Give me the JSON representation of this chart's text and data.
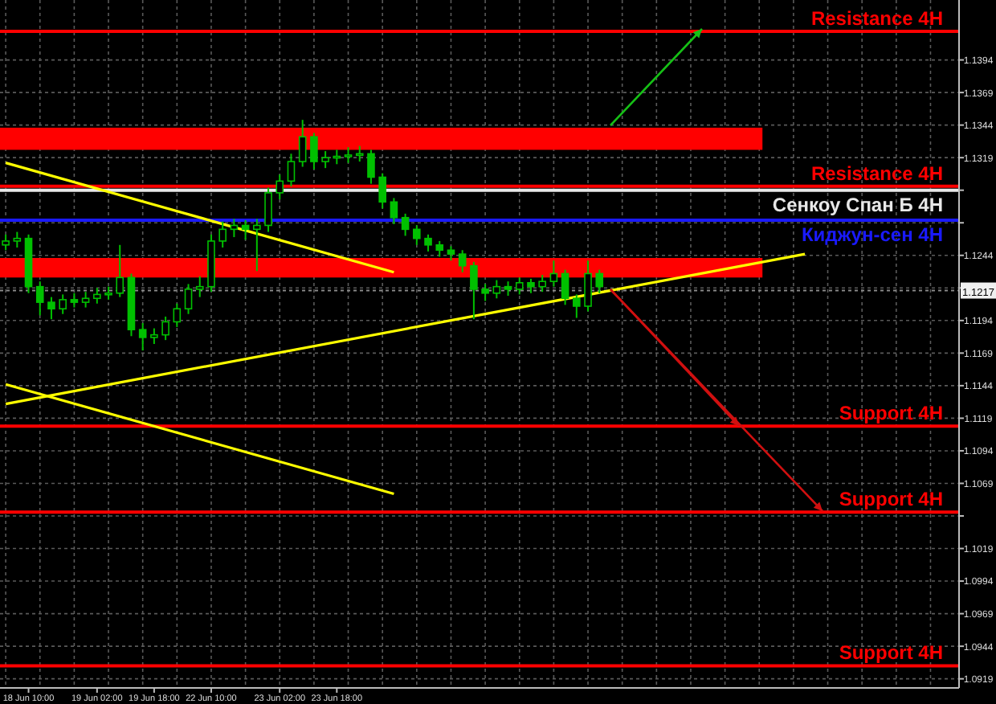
{
  "chart_data": {
    "type": "candlestick",
    "categories": [
      null,
      null,
      "18 Jun 10:00",
      null,
      null,
      null,
      null,
      null,
      "19 Jun 02:00",
      null,
      null,
      null,
      null,
      "19 Jun 18:00",
      null,
      null,
      null,
      null,
      "22 Jun 10:00",
      null,
      null,
      null,
      null,
      null,
      "23 Jun 02:00",
      null,
      null,
      null,
      null,
      "23 Jun 18:00",
      null,
      null,
      null,
      null,
      null,
      null,
      null,
      null,
      null,
      null,
      null,
      null,
      null,
      null,
      null,
      null,
      null,
      null,
      null,
      null,
      null,
      null,
      null,
      null,
      null,
      null,
      null,
      null,
      null,
      null,
      null,
      null,
      null,
      null,
      null,
      null,
      null,
      null,
      null,
      null,
      null,
      null,
      null,
      null,
      null,
      null,
      null,
      null,
      null,
      null,
      null,
      null,
      null,
      null
    ],
    "ohlc": [
      [
        1.1252,
        1.126,
        1.1248,
        1.1255
      ],
      [
        1.1255,
        1.1262,
        1.125,
        1.1257
      ],
      [
        1.1257,
        1.126,
        1.1215,
        1.122
      ],
      [
        1.122,
        1.1224,
        1.1198,
        1.1208
      ],
      [
        1.1208,
        1.1212,
        1.1195,
        1.1203
      ],
      [
        1.1203,
        1.1214,
        1.1199,
        1.121
      ],
      [
        1.121,
        1.1215,
        1.1204,
        1.1208
      ],
      [
        1.1208,
        1.1216,
        1.1204,
        1.1211
      ],
      [
        1.1211,
        1.1219,
        1.1207,
        1.1214
      ],
      [
        1.1214,
        1.122,
        1.121,
        1.1215
      ],
      [
        1.1215,
        1.1252,
        1.1212,
        1.1227
      ],
      [
        1.1227,
        1.123,
        1.1182,
        1.1187
      ],
      [
        1.1187,
        1.1192,
        1.1171,
        1.1181
      ],
      [
        1.1181,
        1.1188,
        1.1176,
        1.1183
      ],
      [
        1.1183,
        1.1197,
        1.1179,
        1.1193
      ],
      [
        1.1193,
        1.1207,
        1.1189,
        1.1203
      ],
      [
        1.1203,
        1.1222,
        1.1199,
        1.1218
      ],
      [
        1.1218,
        1.1228,
        1.1212,
        1.122
      ],
      [
        1.122,
        1.126,
        1.1216,
        1.1255
      ],
      [
        1.1255,
        1.127,
        1.125,
        1.1264
      ],
      [
        1.1264,
        1.1272,
        1.1258,
        1.1267
      ],
      [
        1.1267,
        1.1271,
        1.1256,
        1.1264
      ],
      [
        1.1264,
        1.1272,
        1.1232,
        1.1267
      ],
      [
        1.1267,
        1.1296,
        1.1262,
        1.1292
      ],
      [
        1.1292,
        1.1306,
        1.1287,
        1.1301
      ],
      [
        1.1301,
        1.1322,
        1.1297,
        1.1316
      ],
      [
        1.1316,
        1.1348,
        1.1312,
        1.1335
      ],
      [
        1.1335,
        1.1338,
        1.131,
        1.1316
      ],
      [
        1.1316,
        1.1324,
        1.1311,
        1.1319
      ],
      [
        1.1319,
        1.1325,
        1.1314,
        1.132
      ],
      [
        1.132,
        1.1327,
        1.1315,
        1.1321
      ],
      [
        1.1321,
        1.1328,
        1.1316,
        1.1322
      ],
      [
        1.1322,
        1.1325,
        1.1299,
        1.1304
      ],
      [
        1.1304,
        1.1307,
        1.128,
        1.1285
      ],
      [
        1.1285,
        1.1288,
        1.1268,
        1.1273
      ],
      [
        1.1273,
        1.1276,
        1.1259,
        1.1264
      ],
      [
        1.1264,
        1.1267,
        1.1252,
        1.1257
      ],
      [
        1.1257,
        1.126,
        1.1247,
        1.1252
      ],
      [
        1.1252,
        1.1255,
        1.1243,
        1.1248
      ],
      [
        1.1248,
        1.1251,
        1.124,
        1.1245
      ],
      [
        1.1245,
        1.1248,
        1.1231,
        1.1236
      ],
      [
        1.1236,
        1.1239,
        1.1195,
        1.1218
      ],
      [
        1.1218,
        1.1222,
        1.1209,
        1.1215
      ],
      [
        1.1215,
        1.1225,
        1.1211,
        1.122
      ],
      [
        1.122,
        1.1224,
        1.1213,
        1.1218
      ],
      [
        1.1218,
        1.1227,
        1.1214,
        1.1223
      ],
      [
        1.1223,
        1.1226,
        1.1215,
        1.122
      ],
      [
        1.122,
        1.1229,
        1.1216,
        1.1224
      ],
      [
        1.1224,
        1.124,
        1.122,
        1.123
      ],
      [
        1.123,
        1.1233,
        1.1206,
        1.1211
      ],
      [
        1.1211,
        1.1214,
        1.1196,
        1.1205
      ],
      [
        1.1205,
        1.124,
        1.1201,
        1.123
      ],
      [
        1.123,
        1.1233,
        1.1215,
        1.122
      ],
      null,
      null,
      null,
      null,
      null,
      null,
      null,
      null,
      null,
      null,
      null,
      null,
      null,
      null,
      null,
      null,
      null,
      null,
      null,
      null,
      null,
      null,
      null,
      null,
      null,
      null,
      null,
      null,
      null,
      null,
      null
    ],
    "color": "#00c000",
    "series": [
      {
        "type": "line",
        "color": "#ffff00",
        "values": [
          1.1315,
          null,
          null,
          null,
          null,
          null,
          null,
          null,
          null,
          null,
          null,
          null,
          null,
          null,
          null,
          null,
          null,
          null,
          null,
          null,
          null,
          null,
          null,
          null,
          null,
          null,
          null,
          null,
          null,
          null,
          null,
          null,
          null,
          null,
          1.1231,
          null,
          null,
          null,
          null,
          null,
          null,
          null,
          null,
          null,
          null,
          null,
          null,
          null,
          null,
          null,
          null,
          null,
          null,
          null,
          null,
          null,
          null,
          null,
          null,
          null,
          null,
          null,
          null,
          null,
          null,
          null,
          null,
          null,
          null,
          null,
          null,
          null,
          null,
          null,
          null,
          null,
          null,
          null,
          null,
          null,
          null,
          null,
          null,
          null
        ]
      },
      {
        "type": "line",
        "color": "#ffff00",
        "values": [
          1.113,
          null,
          null,
          null,
          null,
          null,
          null,
          null,
          null,
          null,
          null,
          null,
          null,
          null,
          null,
          null,
          null,
          null,
          null,
          null,
          null,
          null,
          null,
          null,
          null,
          null,
          null,
          null,
          null,
          null,
          null,
          null,
          null,
          null,
          null,
          null,
          null,
          null,
          null,
          null,
          null,
          null,
          null,
          null,
          null,
          null,
          null,
          null,
          null,
          null,
          null,
          null,
          null,
          null,
          null,
          null,
          null,
          null,
          null,
          null,
          null,
          null,
          null,
          null,
          null,
          null,
          null,
          null,
          null,
          null,
          1.1245,
          null,
          null,
          null,
          null,
          null,
          null,
          null,
          null,
          null,
          null,
          null,
          null,
          null
        ]
      },
      {
        "type": "line",
        "color": "#ffff00",
        "values": [
          1.1145,
          null,
          null,
          null,
          null,
          null,
          null,
          null,
          null,
          null,
          null,
          null,
          null,
          null,
          null,
          null,
          null,
          null,
          null,
          null,
          null,
          null,
          null,
          null,
          null,
          null,
          null,
          null,
          null,
          null,
          null,
          null,
          null,
          null,
          1.1061,
          null,
          null,
          null,
          null,
          null,
          null,
          null,
          null,
          null,
          null,
          null,
          null,
          null,
          null,
          null,
          null,
          null,
          null,
          null,
          null,
          null,
          null,
          null,
          null,
          null,
          null,
          null,
          null,
          null,
          null,
          null,
          null,
          null,
          null,
          null,
          null,
          null,
          null,
          null,
          null,
          null,
          null,
          null,
          null,
          null,
          null,
          null,
          null,
          null
        ]
      }
    ],
    "ylim": [
      1.0912,
      1.144
    ],
    "yticks": [
      1.1394,
      1.1369,
      1.1344,
      1.1319,
      {
        "value": 1.1294,
        "label": null
      },
      {
        "value": 1.1269,
        "label": null
      },
      1.1244,
      {
        "value": 1.1219,
        "label": null
      },
      1.1194,
      1.1169,
      1.1144,
      1.1119,
      1.1094,
      1.1069,
      {
        "value": 1.1044,
        "label": null
      },
      1.1019,
      1.0994,
      1.0969,
      1.0944,
      1.0919
    ],
    "grid": true,
    "bands": [
      {
        "axis": "y",
        "from": 1.1325,
        "to": 1.1342,
        "color": "#ff0000"
      },
      {
        "axis": "y",
        "from": 1.1227,
        "to": 1.1242,
        "color": "#ff0000"
      }
    ],
    "ref_lines": [
      {
        "axis": "y",
        "value": 1.1416,
        "label": "Resistance 4H",
        "color": "#ff0000"
      },
      {
        "axis": "y",
        "value": 1.1297,
        "label": "Resistance 4H",
        "color": "#ff0000"
      },
      {
        "axis": "y",
        "value": 1.1294,
        "label": "Сенкоу Спан Б 4H",
        "color": "#e8e8e8"
      },
      {
        "axis": "y",
        "value": 1.1271,
        "label": "Киджун-сен 4H",
        "color": "#1a1aff"
      },
      {
        "axis": "y",
        "value": 1.1217,
        "label": "1.1217",
        "color": "#8a8a8a",
        "line_style": "dotted"
      },
      {
        "axis": "y",
        "value": 1.1113,
        "label": "Support 4H",
        "color": "#ff0000"
      },
      {
        "axis": "y",
        "value": 1.1047,
        "label": "Support 4H",
        "color": "#ff0000"
      },
      {
        "axis": "y",
        "value": 1.0929,
        "label": "Support 4H",
        "color": "#ff0000"
      }
    ]
  }
}
